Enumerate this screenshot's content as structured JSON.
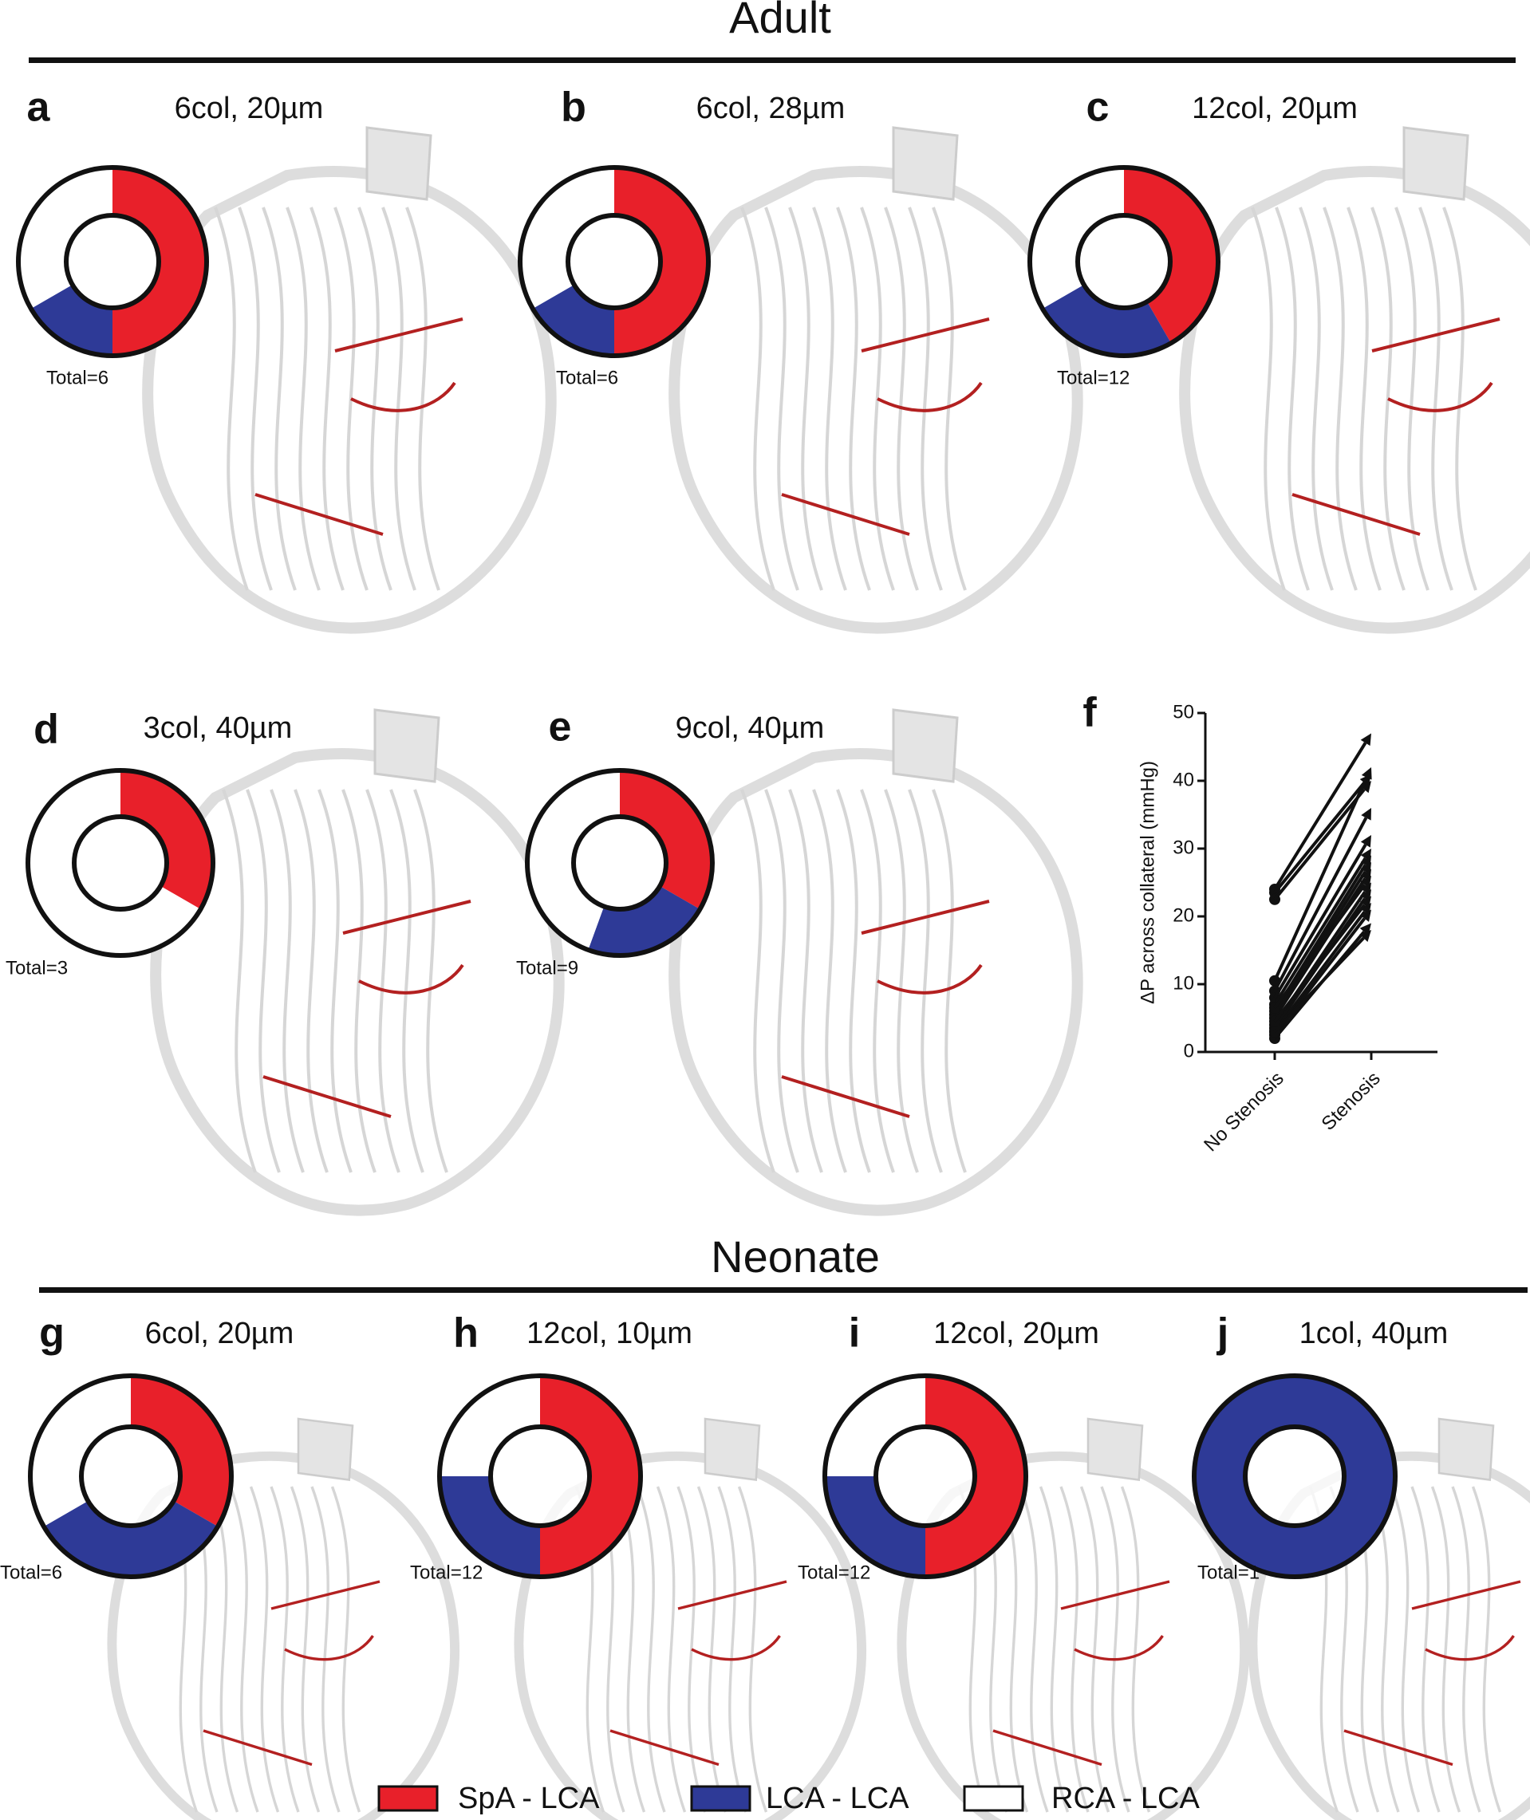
{
  "header": {
    "adult": "Adult",
    "neonate": "Neonate"
  },
  "legend": [
    {
      "name": "SpA - LCA",
      "color": "#e8202a"
    },
    {
      "name": "LCA - LCA",
      "color": "#2e3a97"
    },
    {
      "name": "RCA - LCA",
      "color": "#ffffff"
    }
  ],
  "chart_data": [
    {
      "type": "pie",
      "letter": "a",
      "title": "6col, 20µm",
      "total_label": "Total=6",
      "values": [
        3,
        1,
        2
      ]
    },
    {
      "type": "pie",
      "letter": "b",
      "title": "6col, 28µm",
      "total_label": "Total=6",
      "values": [
        3,
        1,
        2
      ]
    },
    {
      "type": "pie",
      "letter": "c",
      "title": "12col, 20µm",
      "total_label": "Total=12",
      "values": [
        5,
        3,
        4
      ]
    },
    {
      "type": "pie",
      "letter": "d",
      "title": "3col, 40µm",
      "total_label": "Total=3",
      "values": [
        1,
        0,
        2
      ]
    },
    {
      "type": "pie",
      "letter": "e",
      "title": "9col, 40µm",
      "total_label": "Total=9",
      "values": [
        3,
        2,
        4
      ]
    },
    {
      "type": "line",
      "letter": "f",
      "ylabel": "ΔP across collateral (mmHg)",
      "categories": [
        "No Stenosis",
        "Stenosis"
      ],
      "color": "#111111",
      "ylim": [
        0,
        50
      ],
      "yticks": [
        0,
        10,
        20,
        30,
        40,
        50
      ],
      "series": [
        {
          "values": [
            24,
            47
          ]
        },
        {
          "values": [
            23.5,
            41
          ]
        },
        {
          "values": [
            22.5,
            40
          ]
        },
        {
          "values": [
            10.5,
            42
          ]
        },
        {
          "values": [
            9,
            36
          ]
        },
        {
          "values": [
            8,
            32
          ]
        },
        {
          "values": [
            7,
            30
          ]
        },
        {
          "values": [
            6,
            29
          ]
        },
        {
          "values": [
            5.5,
            28
          ]
        },
        {
          "values": [
            5,
            27
          ]
        },
        {
          "values": [
            4,
            25
          ]
        },
        {
          "values": [
            3.5,
            24
          ]
        },
        {
          "values": [
            3,
            22
          ]
        },
        {
          "values": [
            2.5,
            21
          ]
        },
        {
          "values": [
            2,
            19
          ]
        },
        {
          "values": [
            3,
            18
          ]
        },
        {
          "values": [
            4.5,
            23
          ]
        },
        {
          "values": [
            6.5,
            26
          ]
        }
      ]
    },
    {
      "type": "pie",
      "letter": "g",
      "title": "6col, 20µm",
      "total_label": "Total=6",
      "values": [
        2,
        2,
        2
      ]
    },
    {
      "type": "pie",
      "letter": "h",
      "title": "12col, 10µm",
      "total_label": "Total=12",
      "values": [
        6,
        3,
        3
      ]
    },
    {
      "type": "pie",
      "letter": "i",
      "title": "12col, 20µm",
      "total_label": "Total=12",
      "values": [
        6,
        3,
        3
      ]
    },
    {
      "type": "pie",
      "letter": "j",
      "title": "1col, 40µm",
      "total_label": "Total=1",
      "values": [
        0,
        1,
        0
      ]
    }
  ]
}
